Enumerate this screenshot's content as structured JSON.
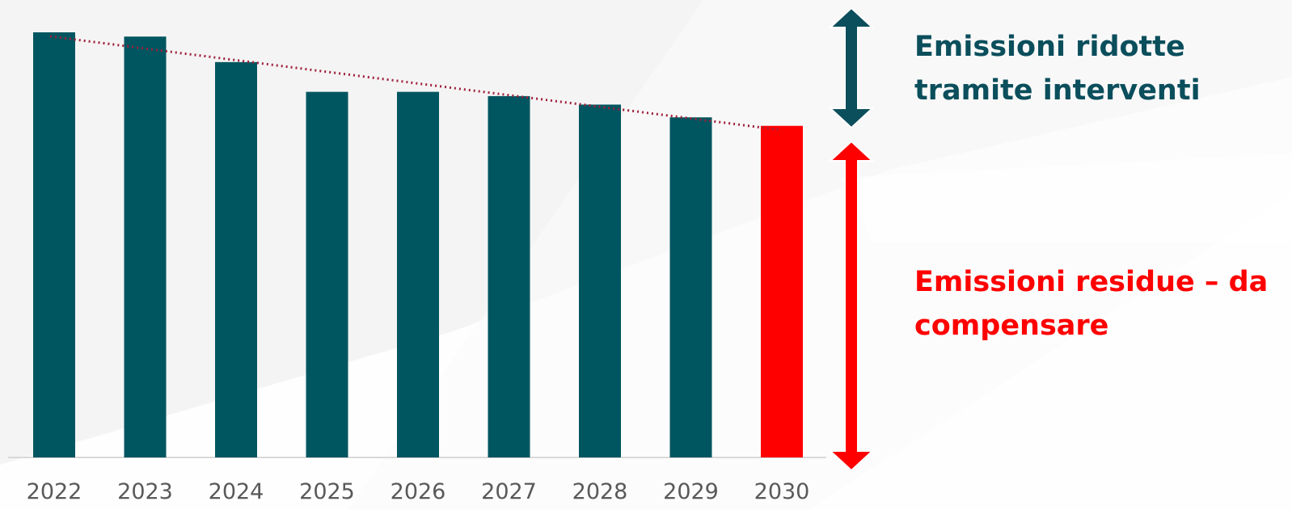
{
  "chart_data": {
    "type": "bar",
    "categories": [
      "2022",
      "2023",
      "2024",
      "2025",
      "2026",
      "2027",
      "2028",
      "2029",
      "2030"
    ],
    "values": [
      100,
      99,
      93,
      86,
      86,
      85,
      83,
      80,
      78
    ],
    "highlight": {
      "category": "2030",
      "color": "#ff0000"
    },
    "bar_color": "#005660",
    "trendline": {
      "style": "dotted",
      "color": "#a0203c",
      "from": "2022",
      "to": "2030"
    },
    "ylim": [
      0,
      100
    ],
    "title": "",
    "xlabel": "",
    "ylabel": "",
    "grid": false,
    "annotations": [
      {
        "text": "Emissioni ridotte tramite interventi",
        "color": "#0b4e5c",
        "arrow_color": "#0b4e5c",
        "span": [
          78,
          100
        ]
      },
      {
        "text": "Emissioni residue – da compensare",
        "color": "#ff0000",
        "arrow_color": "#ff0000",
        "span": [
          0,
          78
        ]
      }
    ]
  }
}
